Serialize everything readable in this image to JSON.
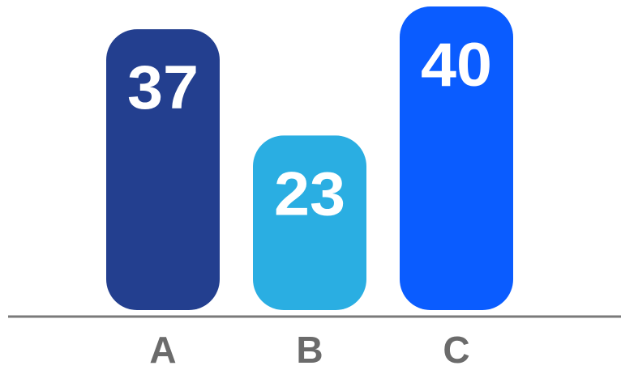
{
  "chart_data": {
    "type": "bar",
    "title": "",
    "xlabel": "",
    "ylabel": "",
    "categories": [
      "A",
      "B",
      "C"
    ],
    "values": [
      37,
      23,
      40
    ],
    "colors": [
      "#233f8f",
      "#2aaee2",
      "#0a5cff"
    ],
    "ylim": [
      0,
      40
    ],
    "grid": false,
    "legend": "none",
    "baseline_color": "#7a7a7a",
    "label_color": "#6b6b6b",
    "value_label_color": "#ffffff"
  }
}
